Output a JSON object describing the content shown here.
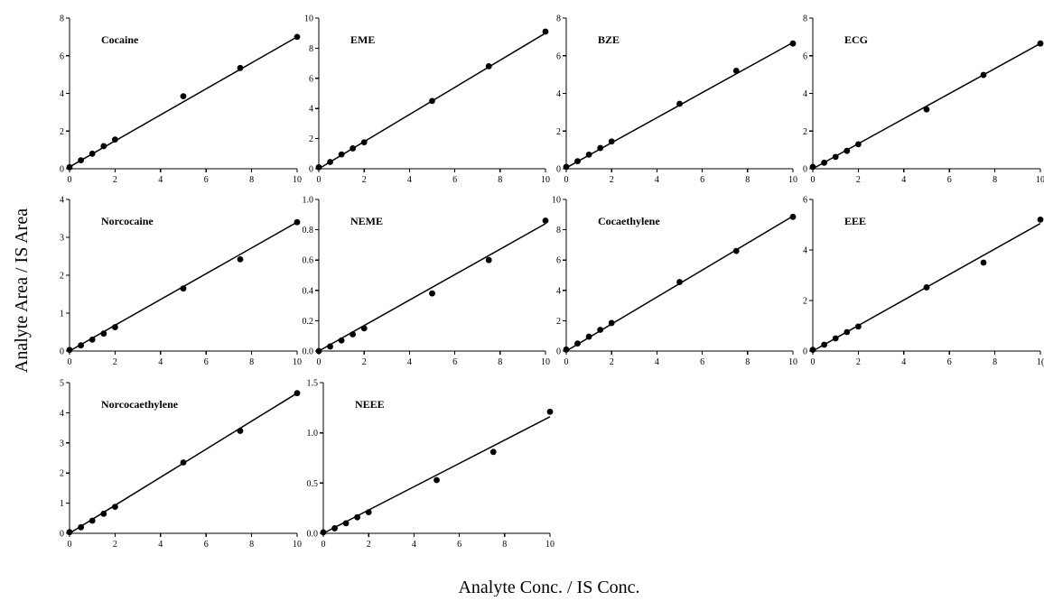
{
  "figure": {
    "xlabel": "Analyte Conc. / IS Conc.",
    "ylabel": "Analyte Area / IS Area"
  },
  "chart_data": [
    {
      "type": "scatter",
      "title": "Cocaine",
      "x": [
        0,
        0.5,
        1,
        1.5,
        2,
        5,
        7.5,
        10
      ],
      "y": [
        0.08,
        0.45,
        0.8,
        1.2,
        1.55,
        3.85,
        5.35,
        7.0
      ],
      "fit": {
        "x": [
          0,
          10
        ],
        "y": [
          0.1,
          7.0
        ]
      },
      "xlim": [
        0,
        10
      ],
      "ylim": [
        0,
        8
      ],
      "xticks": [
        "0",
        "2",
        "4",
        "6",
        "8",
        "10"
      ],
      "yticks": [
        "0",
        "2",
        "4",
        "6",
        "8"
      ]
    },
    {
      "type": "scatter",
      "title": "EME",
      "x": [
        0,
        0.5,
        1,
        1.5,
        2,
        5,
        7.5,
        10
      ],
      "y": [
        0.1,
        0.45,
        0.95,
        1.35,
        1.75,
        4.5,
        6.8,
        9.1
      ],
      "fit": {
        "x": [
          0,
          10
        ],
        "y": [
          0.0,
          9.0
        ]
      },
      "xlim": [
        0,
        10
      ],
      "ylim": [
        0,
        10
      ],
      "xticks": [
        "0",
        "2",
        "4",
        "6",
        "8",
        "10"
      ],
      "yticks": [
        "0",
        "2",
        "4",
        "6",
        "8",
        "10"
      ]
    },
    {
      "type": "scatter",
      "title": "BZE",
      "x": [
        0,
        0.5,
        1,
        1.5,
        2,
        5,
        7.5,
        10
      ],
      "y": [
        0.1,
        0.4,
        0.75,
        1.1,
        1.45,
        3.45,
        5.2,
        6.65
      ],
      "fit": {
        "x": [
          0,
          10
        ],
        "y": [
          0.05,
          6.7
        ]
      },
      "xlim": [
        0,
        10
      ],
      "ylim": [
        0,
        8
      ],
      "xticks": [
        "0",
        "2",
        "4",
        "6",
        "8",
        "10"
      ],
      "yticks": [
        "0",
        "2",
        "4",
        "6",
        "8"
      ]
    },
    {
      "type": "scatter",
      "title": "ECG",
      "x": [
        0,
        0.5,
        1,
        1.5,
        2,
        5,
        7.5,
        10
      ],
      "y": [
        0.1,
        0.32,
        0.63,
        0.95,
        1.3,
        3.15,
        4.98,
        6.65
      ],
      "fit": {
        "x": [
          0,
          10
        ],
        "y": [
          0.0,
          6.65
        ]
      },
      "xlim": [
        0,
        10
      ],
      "ylim": [
        0,
        8
      ],
      "xticks": [
        "0",
        "2",
        "4",
        "6",
        "8",
        "10"
      ],
      "yticks": [
        "0",
        "2",
        "4",
        "6",
        "8"
      ]
    },
    {
      "type": "scatter",
      "title": "Norcocaine",
      "x": [
        0,
        0.5,
        1,
        1.5,
        2,
        5,
        7.5,
        10
      ],
      "y": [
        0.03,
        0.15,
        0.3,
        0.46,
        0.63,
        1.65,
        2.42,
        3.4
      ],
      "fit": {
        "x": [
          0,
          10
        ],
        "y": [
          0.0,
          3.4
        ]
      },
      "xlim": [
        0,
        10
      ],
      "ylim": [
        0,
        4
      ],
      "xticks": [
        "0",
        "2",
        "4",
        "6",
        "8",
        "10"
      ],
      "yticks": [
        "0",
        "1",
        "2",
        "3",
        "4"
      ]
    },
    {
      "type": "scatter",
      "title": "NEME",
      "x": [
        0,
        0.5,
        1,
        1.5,
        2,
        5,
        7.5,
        10
      ],
      "y": [
        0.0,
        0.03,
        0.07,
        0.11,
        0.15,
        0.38,
        0.6,
        0.86
      ],
      "fit": {
        "x": [
          0,
          10
        ],
        "y": [
          0.0,
          0.84
        ]
      },
      "xlim": [
        0,
        10
      ],
      "ylim": [
        0,
        1.0
      ],
      "xticks": [
        "0",
        "2",
        "4",
        "6",
        "8",
        "10"
      ],
      "yticks": [
        "0.0",
        "0.2",
        "0.4",
        "0.6",
        "0.8",
        "1.0"
      ]
    },
    {
      "type": "scatter",
      "title": "Cocaethylene",
      "x": [
        0,
        0.5,
        1,
        1.5,
        2,
        5,
        7.5,
        10
      ],
      "y": [
        0.1,
        0.5,
        0.95,
        1.4,
        1.85,
        4.55,
        6.6,
        8.85
      ],
      "fit": {
        "x": [
          0,
          10
        ],
        "y": [
          0.0,
          8.9
        ]
      },
      "xlim": [
        0,
        10
      ],
      "ylim": [
        0,
        10
      ],
      "xticks": [
        "0",
        "2",
        "4",
        "6",
        "8",
        "10"
      ],
      "yticks": [
        "0",
        "2",
        "4",
        "6",
        "8",
        "10"
      ]
    },
    {
      "type": "scatter",
      "title": "EEE",
      "x": [
        0,
        0.5,
        1,
        1.5,
        2,
        5,
        7.5,
        10
      ],
      "y": [
        0.05,
        0.25,
        0.5,
        0.75,
        0.97,
        2.52,
        3.5,
        5.2
      ],
      "fit": {
        "x": [
          0,
          10
        ],
        "y": [
          0.0,
          5.05
        ]
      },
      "xlim": [
        0,
        10
      ],
      "ylim": [
        0,
        6
      ],
      "xticks": [
        "0",
        "2",
        "4",
        "6",
        "8",
        "1("
      ],
      "yticks": [
        "0",
        "2",
        "4",
        "6"
      ]
    },
    {
      "type": "scatter",
      "title": "Norcocaethylene",
      "x": [
        0,
        0.5,
        1,
        1.5,
        2,
        5,
        7.5,
        10
      ],
      "y": [
        0.04,
        0.2,
        0.42,
        0.65,
        0.88,
        2.35,
        3.4,
        4.65
      ],
      "fit": {
        "x": [
          0,
          10
        ],
        "y": [
          0.0,
          4.65
        ]
      },
      "xlim": [
        0,
        10
      ],
      "ylim": [
        0,
        5
      ],
      "xticks": [
        "0",
        "2",
        "4",
        "6",
        "8",
        "10"
      ],
      "yticks": [
        "0",
        "1",
        "2",
        "3",
        "4",
        "5"
      ]
    },
    {
      "type": "scatter",
      "title": "NEEE",
      "x": [
        0,
        0.5,
        1,
        1.5,
        2,
        5,
        7.5,
        10
      ],
      "y": [
        0.01,
        0.05,
        0.1,
        0.16,
        0.21,
        0.53,
        0.81,
        1.21
      ],
      "fit": {
        "x": [
          0,
          10
        ],
        "y": [
          0.0,
          1.16
        ]
      },
      "xlim": [
        0,
        10
      ],
      "ylim": [
        0,
        1.5
      ],
      "xticks": [
        "0",
        "2",
        "4",
        "6",
        "8",
        "10"
      ],
      "yticks": [
        "0.0",
        "0.5",
        "1.0",
        "1.5"
      ]
    }
  ]
}
